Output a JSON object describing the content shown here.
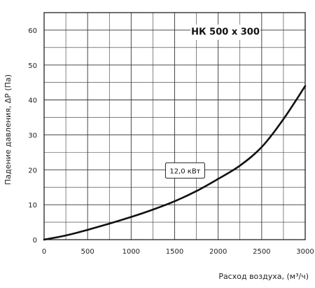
{
  "chart_data": {
    "type": "line",
    "title": "НК 500 х 300",
    "xlabel": "Расход воздуха, (м³/ч)",
    "ylabel": "Падение давления, ΔР (Па)",
    "xlim": [
      0,
      3000
    ],
    "ylim": [
      0,
      65
    ],
    "x_ticks": [
      0,
      500,
      1000,
      1500,
      2000,
      2500,
      3000
    ],
    "y_ticks": [
      0,
      10,
      20,
      30,
      40,
      50,
      60
    ],
    "x_minor_step": 250,
    "y_minor_step": 5,
    "grid": true,
    "series": [
      {
        "name": "12,0 кВт",
        "x": [
          0,
          250,
          500,
          750,
          1000,
          1250,
          1500,
          1750,
          2000,
          2250,
          2500,
          2750,
          3000
        ],
        "y": [
          0,
          1.2,
          2.8,
          4.6,
          6.5,
          8.6,
          11.0,
          13.9,
          17.4,
          21.2,
          26.5,
          34.5,
          44.0
        ]
      }
    ],
    "annotations": [
      {
        "text": "12,0 кВт",
        "x": 1620,
        "y": 19.8
      }
    ]
  }
}
